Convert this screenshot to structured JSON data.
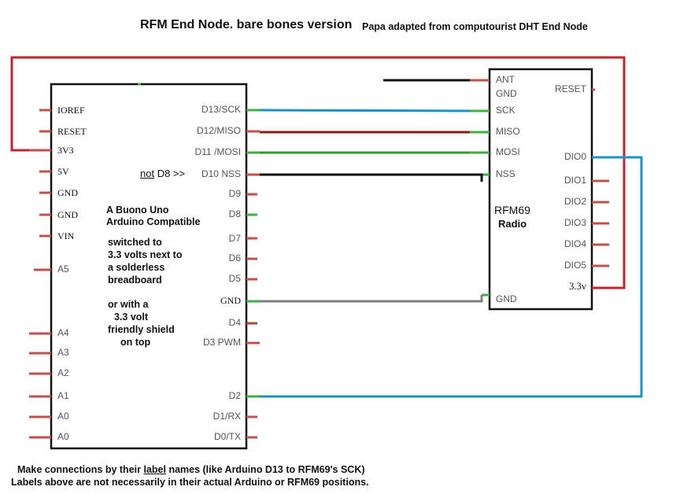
{
  "header": {
    "title": "RFM End Node. bare bones version",
    "credit": "Papa adapted from computourist DHT End Node"
  },
  "arduino": {
    "left_pins": [
      "IOREF",
      "RESET",
      "3V3",
      "5V",
      "GND",
      "GND",
      "VIN",
      "A5",
      "A4",
      "A3",
      "A2",
      "A1",
      "A0",
      "A0"
    ],
    "right_pins": [
      "D13/SCK",
      "D12/MISO",
      "D11 /MOSI",
      "D10  NSS",
      "D9",
      "D8",
      "D7",
      "D6",
      "D5",
      "GND",
      "D4",
      "D3 PWM",
      "D2",
      "D1/RX",
      "D0/TX"
    ],
    "note_not": "not",
    "note_d8": " D8 >>",
    "board_title": [
      "A Buono Uno",
      "Arduino Compatible"
    ],
    "board_notes": [
      "switched to",
      "3.3 volts next to",
      "a solderless",
      "breadboard",
      "",
      "or with a",
      "3.3 volt",
      "friendly shield",
      "on top"
    ]
  },
  "rfm": {
    "left_pins": [
      "ANT",
      "GND",
      "SCK",
      "MISO",
      "MOSI",
      "NSS",
      "GND"
    ],
    "right_pins": [
      "RESET",
      "DIO0",
      "DIO1",
      "DIO2",
      "DIO3",
      "DIO4",
      "DIO5",
      "3.3v"
    ],
    "name": "RFM69",
    "subtitle": "Radio"
  },
  "footer": {
    "line1_pre": "Make connections by their ",
    "line1_label": "label",
    "line1_post": " names (like Arduino D13 to RFM69's SCK)",
    "line2": "Labels above are not necessarily in their actual Arduino or RFM69 positions."
  },
  "colors": {
    "outline": "#111111",
    "pin_stub": "#c0504d",
    "pin_stub_green": "#3cb043",
    "wire_power": "#c0272d",
    "wire_sck": "#1e90c8",
    "wire_miso": "#8b1a1a",
    "wire_mosi": "#2aa02a",
    "wire_nss": "#111111",
    "wire_gnd": "#808080",
    "wire_dio0": "#1e90c8"
  }
}
